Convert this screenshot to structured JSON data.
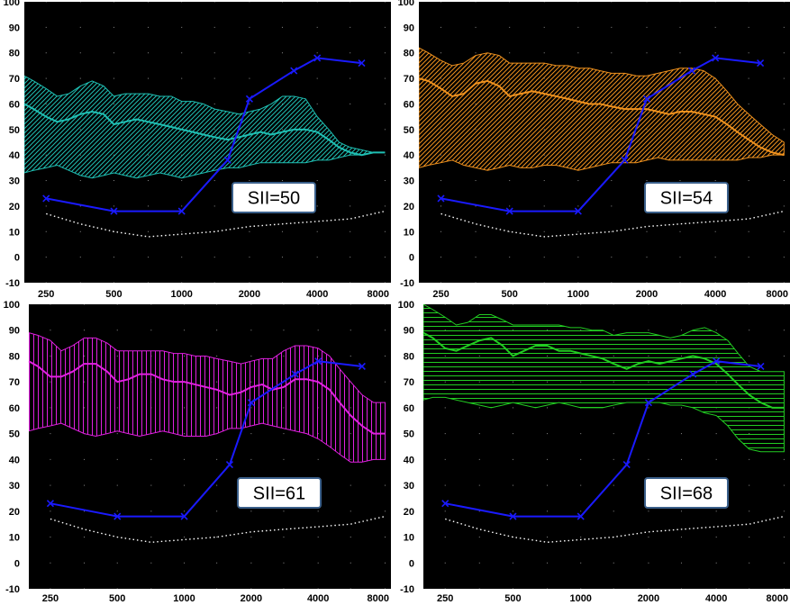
{
  "chart_data": [
    {
      "type": "area",
      "panel": "top-left",
      "x_ticks": [
        "250",
        "500",
        "1000",
        "2000",
        "4000",
        "8000"
      ],
      "y_ticks": [
        "100",
        "90",
        "80",
        "70",
        "60",
        "50",
        "40",
        "30",
        "20",
        "10",
        "0",
        "-10"
      ],
      "ylim": [
        -10,
        100
      ],
      "x_scale": "log",
      "color": "#1fbfb3",
      "hatch": "diagonal",
      "annotation": "SII=50",
      "band_x": [
        200,
        220,
        250,
        280,
        315,
        355,
        400,
        450,
        500,
        560,
        630,
        710,
        800,
        900,
        1000,
        1120,
        1250,
        1400,
        1600,
        1800,
        2000,
        2240,
        2500,
        2800,
        3150,
        3550,
        4000,
        4500,
        5000,
        5600,
        6300,
        7100,
        8000
      ],
      "band_upper": [
        71,
        69,
        66,
        63,
        64,
        67,
        69,
        67,
        63,
        64,
        64,
        64,
        63,
        63,
        61,
        61,
        60,
        58,
        57,
        56,
        57,
        58,
        60,
        63,
        63,
        62,
        55,
        50,
        45,
        43,
        42,
        41,
        41
      ],
      "band_lower": [
        33,
        34,
        35,
        36,
        34,
        32,
        31,
        32,
        33,
        32,
        31,
        32,
        33,
        32,
        31,
        32,
        33,
        34,
        35,
        35,
        36,
        37,
        37,
        37,
        37,
        37,
        38,
        38,
        39,
        40,
        40,
        41,
        41
      ],
      "series": [
        {
          "name": "",
          "x": [
            200,
            220,
            250,
            280,
            315,
            355,
            400,
            450,
            500,
            560,
            630,
            710,
            800,
            900,
            1000,
            1120,
            1250,
            1400,
            1600,
            1800,
            2000,
            2240,
            2500,
            2800,
            3150,
            3550,
            4000,
            4500,
            5000,
            5600,
            6300,
            7100,
            8000
          ],
          "values": [
            60,
            58,
            55,
            53,
            54,
            56,
            57,
            56,
            52,
            53,
            54,
            53,
            52,
            51,
            50,
            49,
            48,
            47,
            46,
            47,
            48,
            49,
            48,
            49,
            50,
            50,
            49,
            46,
            43,
            41,
            40,
            41,
            41
          ],
          "color": "#1fbfb3"
        },
        {
          "name": "",
          "x": [
            250,
            500,
            1000,
            1600,
            2000,
            3150,
            4000,
            6300
          ],
          "values": [
            23,
            18,
            18,
            38,
            62,
            73,
            78,
            76
          ],
          "color": "#1a1aff",
          "marker": "x"
        },
        {
          "name": "",
          "x": [
            250,
            355,
            500,
            710,
            1000,
            1400,
            2000,
            2800,
            4000,
            5600,
            8000
          ],
          "values": [
            17,
            13,
            10,
            8,
            9,
            10,
            12,
            13,
            14,
            15,
            18
          ],
          "color": "#ffffff",
          "dotted": true
        }
      ]
    },
    {
      "type": "area",
      "panel": "top-right",
      "x_ticks": [
        "250",
        "500",
        "1000",
        "2000",
        "4000",
        "8000"
      ],
      "y_ticks": [
        "100",
        "90",
        "80",
        "70",
        "60",
        "50",
        "40",
        "30",
        "20",
        "10",
        "0",
        "-10"
      ],
      "ylim": [
        -10,
        100
      ],
      "x_scale": "log",
      "color": "#f0921e",
      "hatch": "diagonal",
      "annotation": "SII=54",
      "band_x": [
        200,
        220,
        250,
        280,
        315,
        355,
        400,
        450,
        500,
        560,
        630,
        710,
        800,
        900,
        1000,
        1120,
        1250,
        1400,
        1600,
        1800,
        2000,
        2240,
        2500,
        2800,
        3150,
        3550,
        4000,
        4500,
        5000,
        5600,
        6300,
        7100,
        8000
      ],
      "band_upper": [
        82,
        80,
        77,
        75,
        76,
        79,
        80,
        79,
        76,
        76,
        76,
        76,
        75,
        75,
        74,
        74,
        73,
        72,
        72,
        71,
        71,
        72,
        73,
        74,
        74,
        73,
        70,
        65,
        60,
        56,
        52,
        48,
        45
      ],
      "band_lower": [
        35,
        36,
        37,
        38,
        36,
        35,
        34,
        35,
        36,
        35,
        35,
        36,
        36,
        35,
        34,
        35,
        36,
        37,
        37,
        37,
        38,
        39,
        38,
        38,
        38,
        38,
        38,
        38,
        38,
        39,
        39,
        40,
        40
      ],
      "series": [
        {
          "name": "",
          "x": [
            200,
            220,
            250,
            280,
            315,
            355,
            400,
            450,
            500,
            560,
            630,
            710,
            800,
            900,
            1000,
            1120,
            1250,
            1400,
            1600,
            1800,
            2000,
            2240,
            2500,
            2800,
            3150,
            3550,
            4000,
            4500,
            5000,
            5600,
            6300,
            7100,
            8000
          ],
          "values": [
            70,
            69,
            66,
            63,
            64,
            68,
            69,
            67,
            63,
            64,
            65,
            64,
            63,
            62,
            61,
            60,
            60,
            59,
            58,
            58,
            58,
            57,
            56,
            57,
            57,
            56,
            55,
            52,
            49,
            46,
            43,
            41,
            40
          ],
          "color": "#f0921e"
        },
        {
          "name": "",
          "x": [
            250,
            500,
            1000,
            1600,
            2000,
            3150,
            4000,
            6300
          ],
          "values": [
            23,
            18,
            18,
            38,
            62,
            73,
            78,
            76
          ],
          "color": "#1a1aff",
          "marker": "x"
        },
        {
          "name": "",
          "x": [
            250,
            355,
            500,
            710,
            1000,
            1400,
            2000,
            2800,
            4000,
            5600,
            8000
          ],
          "values": [
            17,
            13,
            10,
            8,
            9,
            10,
            12,
            13,
            14,
            15,
            18
          ],
          "color": "#ffffff",
          "dotted": true
        }
      ]
    },
    {
      "type": "area",
      "panel": "bottom-left",
      "x_ticks": [
        "250",
        "500",
        "1000",
        "2000",
        "4000",
        "8000"
      ],
      "y_ticks": [
        "100",
        "90",
        "80",
        "70",
        "60",
        "50",
        "40",
        "30",
        "20",
        "10",
        "0",
        "-10"
      ],
      "ylim": [
        -10,
        100
      ],
      "x_scale": "log",
      "color": "#e020e0",
      "hatch": "vertical",
      "annotation": "SII=61",
      "band_x": [
        200,
        220,
        250,
        280,
        315,
        355,
        400,
        450,
        500,
        560,
        630,
        710,
        800,
        900,
        1000,
        1120,
        1250,
        1400,
        1600,
        1800,
        2000,
        2240,
        2500,
        2800,
        3150,
        3550,
        4000,
        4500,
        5000,
        5600,
        6300,
        7100,
        8000
      ],
      "band_upper": [
        89,
        88,
        86,
        82,
        84,
        87,
        87,
        85,
        82,
        82,
        82,
        82,
        82,
        81,
        81,
        80,
        80,
        79,
        78,
        77,
        78,
        79,
        79,
        82,
        84,
        84,
        83,
        80,
        75,
        70,
        65,
        62,
        62
      ],
      "band_lower": [
        51,
        52,
        53,
        54,
        52,
        50,
        49,
        50,
        51,
        50,
        49,
        50,
        51,
        50,
        49,
        49,
        49,
        50,
        52,
        52,
        53,
        54,
        53,
        52,
        51,
        50,
        48,
        45,
        42,
        39,
        39,
        40,
        40
      ],
      "series": [
        {
          "name": "",
          "x": [
            200,
            220,
            250,
            280,
            315,
            355,
            400,
            450,
            500,
            560,
            630,
            710,
            800,
            900,
            1000,
            1120,
            1250,
            1400,
            1600,
            1800,
            2000,
            2240,
            2500,
            2800,
            3150,
            3550,
            4000,
            4500,
            5000,
            5600,
            6300,
            7100,
            8000
          ],
          "values": [
            78,
            76,
            72,
            72,
            74,
            77,
            77,
            74,
            70,
            71,
            73,
            73,
            71,
            70,
            70,
            69,
            68,
            67,
            65,
            66,
            68,
            69,
            67,
            68,
            71,
            71,
            70,
            67,
            62,
            57,
            53,
            50,
            50
          ],
          "color": "#e020e0"
        },
        {
          "name": "",
          "x": [
            250,
            500,
            1000,
            1600,
            2000,
            3150,
            4000,
            6300
          ],
          "values": [
            23,
            18,
            18,
            38,
            62,
            73,
            78,
            76
          ],
          "color": "#1a1aff",
          "marker": "x"
        },
        {
          "name": "",
          "x": [
            250,
            355,
            500,
            710,
            1000,
            1400,
            2000,
            2800,
            4000,
            5600,
            8000
          ],
          "values": [
            17,
            13,
            10,
            8,
            9,
            10,
            12,
            13,
            14,
            15,
            18
          ],
          "color": "#ffffff",
          "dotted": true
        }
      ]
    },
    {
      "type": "area",
      "panel": "bottom-right",
      "x_ticks": [
        "250",
        "500",
        "1000",
        "2000",
        "4000",
        "8000"
      ],
      "y_ticks": [
        "100",
        "90",
        "80",
        "70",
        "60",
        "50",
        "40",
        "30",
        "20",
        "10",
        "0",
        "-10"
      ],
      "ylim": [
        -10,
        100
      ],
      "x_scale": "log",
      "color": "#22cc22",
      "hatch": "horizontal",
      "annotation": "SII=68",
      "band_x": [
        200,
        220,
        250,
        280,
        315,
        355,
        400,
        450,
        500,
        560,
        630,
        710,
        800,
        900,
        1000,
        1120,
        1250,
        1400,
        1600,
        1800,
        2000,
        2240,
        2500,
        2800,
        3150,
        3550,
        4000,
        4500,
        5000,
        5600,
        6300,
        7100,
        8000
      ],
      "band_upper": [
        100,
        98,
        95,
        92,
        93,
        96,
        96,
        94,
        92,
        92,
        92,
        92,
        92,
        91,
        91,
        90,
        90,
        88,
        89,
        89,
        89,
        88,
        87,
        88,
        90,
        91,
        89,
        86,
        81,
        76,
        74,
        74,
        74
      ],
      "band_lower": [
        63,
        64,
        64,
        63,
        62,
        61,
        60,
        61,
        62,
        61,
        60,
        61,
        62,
        61,
        60,
        60,
        60,
        61,
        62,
        62,
        62,
        62,
        61,
        61,
        60,
        58,
        57,
        53,
        48,
        44,
        43,
        43,
        43
      ],
      "series": [
        {
          "name": "",
          "x": [
            200,
            220,
            250,
            280,
            315,
            355,
            400,
            450,
            500,
            560,
            630,
            710,
            800,
            900,
            1000,
            1120,
            1250,
            1400,
            1600,
            1800,
            2000,
            2240,
            2500,
            2800,
            3150,
            3550,
            4000,
            4500,
            5000,
            5600,
            6300,
            7100,
            8000
          ],
          "values": [
            89,
            87,
            83,
            82,
            84,
            86,
            87,
            84,
            80,
            82,
            84,
            84,
            82,
            82,
            81,
            80,
            79,
            77,
            75,
            77,
            78,
            77,
            78,
            79,
            80,
            79,
            77,
            73,
            69,
            65,
            62,
            60,
            60
          ],
          "color": "#22cc22"
        },
        {
          "name": "",
          "x": [
            250,
            500,
            1000,
            1600,
            2000,
            3150,
            4000,
            6300
          ],
          "values": [
            23,
            18,
            18,
            38,
            62,
            73,
            78,
            76
          ],
          "color": "#1a1aff",
          "marker": "x"
        },
        {
          "name": "",
          "x": [
            250,
            355,
            500,
            710,
            1000,
            1400,
            2000,
            2800,
            4000,
            5600,
            8000
          ],
          "values": [
            17,
            13,
            10,
            8,
            9,
            10,
            12,
            13,
            14,
            15,
            18
          ],
          "color": "#ffffff",
          "dotted": true
        }
      ]
    }
  ]
}
